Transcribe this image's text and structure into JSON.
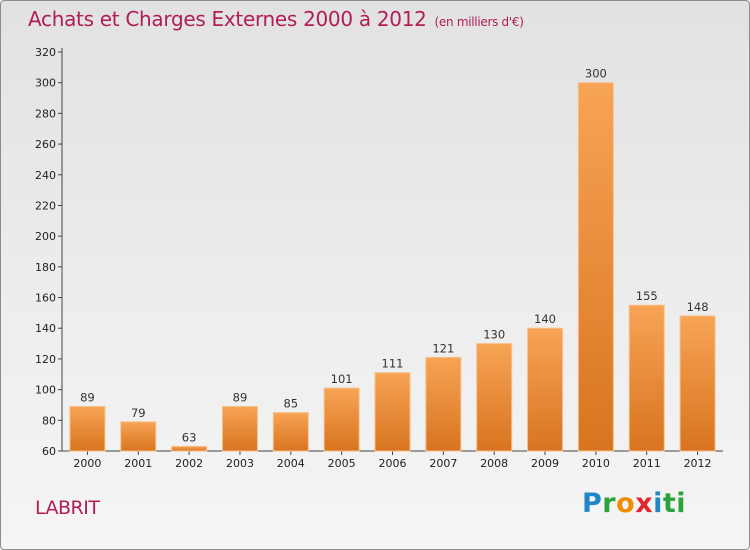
{
  "header": {
    "title": "Achats et Charges Externes 2000 à 2012",
    "subtitle": "(en milliers d'€)"
  },
  "footer": {
    "commune": "LABRIT",
    "logo_text": "Proxiti"
  },
  "colors": {
    "title": "#b11d58",
    "bar_light": "#f7a455",
    "bar_dark": "#d8741f"
  },
  "chart_data": {
    "type": "bar",
    "title": "Achats et Charges Externes 2000 à 2012",
    "categories": [
      "2000",
      "2001",
      "2002",
      "2003",
      "2004",
      "2005",
      "2006",
      "2007",
      "2008",
      "2009",
      "2010",
      "2011",
      "2012"
    ],
    "values": [
      89,
      79,
      63,
      89,
      85,
      101,
      111,
      121,
      130,
      140,
      300,
      155,
      148
    ],
    "ylim": [
      60,
      320
    ],
    "yticks": [
      60,
      80,
      100,
      120,
      140,
      160,
      180,
      200,
      220,
      240,
      260,
      280,
      300,
      320
    ],
    "grid": false,
    "legend": "none"
  }
}
